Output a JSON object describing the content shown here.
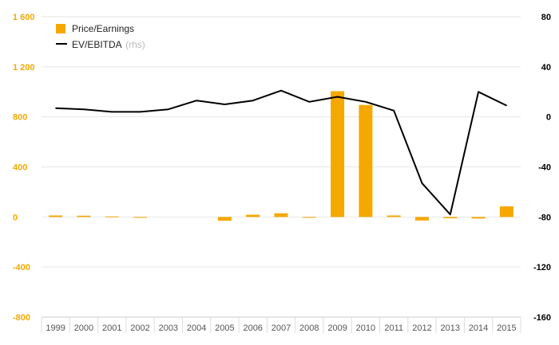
{
  "chart_data": {
    "type": "bar+line",
    "categories": [
      "1999",
      "2000",
      "2001",
      "2002",
      "2003",
      "2004",
      "2005",
      "2006",
      "2007",
      "2008",
      "2009",
      "2010",
      "2011",
      "2012",
      "2013",
      "2014",
      "2015"
    ],
    "series": [
      {
        "name": "Price/Earnings",
        "type": "bar",
        "axis": "left",
        "color": "#f5a800",
        "values": [
          12,
          10,
          5,
          -5,
          0,
          0,
          -30,
          18,
          30,
          -5,
          1005,
          895,
          12,
          -28,
          -10,
          -12,
          85
        ]
      },
      {
        "name": "EV/EBITDA",
        "name_suffix": "(rhs)",
        "type": "line",
        "axis": "right",
        "color": "#000000",
        "values": [
          7,
          6,
          4,
          4,
          6,
          13,
          10,
          13,
          21,
          12,
          16,
          12,
          5,
          -53,
          -78,
          20,
          9
        ]
      }
    ],
    "y_left": {
      "min": -800,
      "max": 1600,
      "ticks": [
        -800,
        -400,
        0,
        400,
        800,
        1200,
        1600
      ],
      "tick_labels": [
        "-800",
        "-400",
        "0",
        "400",
        "800",
        "1 200",
        "1 600"
      ]
    },
    "y_right": {
      "min": -160,
      "max": 80,
      "ticks": [
        -160,
        -120,
        -80,
        -40,
        0,
        40,
        80
      ],
      "tick_labels": [
        "-160",
        "-120",
        "-80",
        "-40",
        "0",
        "40",
        "80"
      ]
    },
    "grid": true,
    "legend_position": "top-left"
  }
}
